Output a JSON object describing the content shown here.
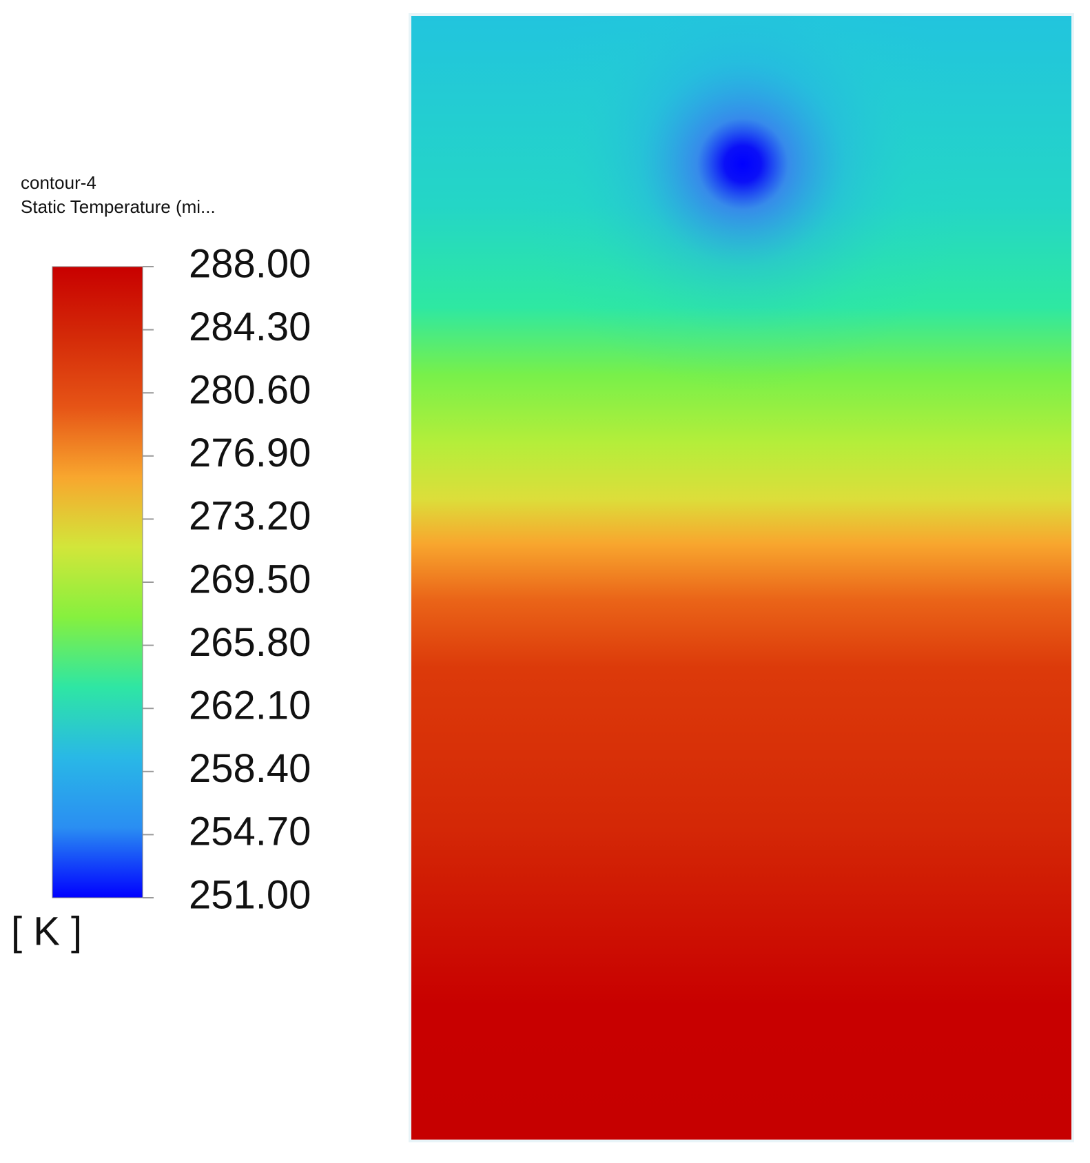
{
  "chart_data": {
    "type": "contour",
    "title": "contour-4",
    "subtitle": "Static Temperature (mi...",
    "unit": "[ K ]",
    "clim": [
      251,
      288
    ],
    "colormap": [
      "#0000ff",
      "#2a8ef2",
      "#29b8e6",
      "#2ee6a4",
      "#86f03e",
      "#d2e63a",
      "#f8a62e",
      "#e65416",
      "#d42a08",
      "#c80000"
    ],
    "cticks": [
      {
        "value": 288,
        "label": "288.00"
      },
      {
        "value": 284.3,
        "label": "284.30"
      },
      {
        "value": 280.6,
        "label": "280.60"
      },
      {
        "value": 276.9,
        "label": "276.90"
      },
      {
        "value": 273.2,
        "label": "273.20"
      },
      {
        "value": 269.5,
        "label": "269.50"
      },
      {
        "value": 265.8,
        "label": "265.80"
      },
      {
        "value": 262.1,
        "label": "262.10"
      },
      {
        "value": 258.4,
        "label": "258.40"
      },
      {
        "value": 254.7,
        "label": "254.70"
      },
      {
        "value": 251,
        "label": "251.00"
      }
    ]
  }
}
